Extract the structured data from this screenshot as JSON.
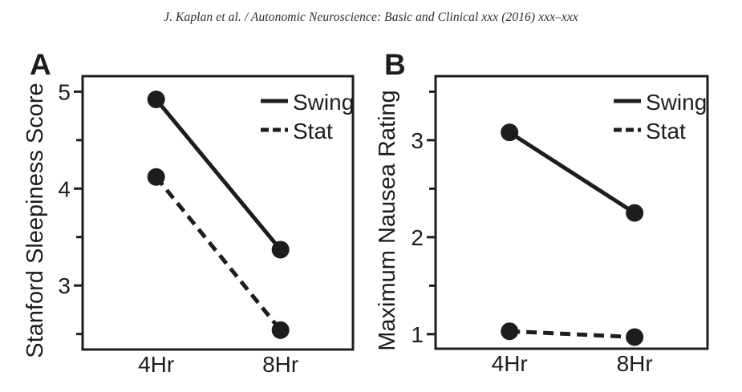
{
  "header": {
    "citation": "J. Kaplan et al. / Autonomic Neuroscience: Basic and Clinical xxx (2016) xxx–xxx"
  },
  "colors": {
    "ink": "#1d1d1b",
    "background": "#ffffff"
  },
  "chart_data": [
    {
      "type": "line",
      "panel_label": "A",
      "title": "",
      "xlabel": "",
      "ylabel": "Stanford Sleepiness Score",
      "categories": [
        "4Hr",
        "8Hr"
      ],
      "series": [
        {
          "name": "Swing",
          "line_style": "solid",
          "marker": "circle",
          "values": [
            4.92,
            3.37
          ]
        },
        {
          "name": "Stat",
          "line_style": "dashed",
          "marker": "circle",
          "values": [
            4.12,
            2.54
          ]
        }
      ],
      "ylim": [
        2.34,
        5.16
      ],
      "yticks_major": [
        5,
        4,
        3
      ],
      "yticks_minor": [
        4.5,
        3.5,
        2.5
      ],
      "grid": false,
      "legend_position": "top-right"
    },
    {
      "type": "line",
      "panel_label": "B",
      "title": "",
      "xlabel": "",
      "ylabel": "Maximum Nausea Rating",
      "categories": [
        "4Hr",
        "8Hr"
      ],
      "series": [
        {
          "name": "Swing",
          "line_style": "solid",
          "marker": "circle",
          "values": [
            3.08,
            2.25
          ]
        },
        {
          "name": "Stat",
          "line_style": "dashed",
          "marker": "circle",
          "values": [
            1.03,
            0.97
          ]
        }
      ],
      "ylim": [
        0.85,
        3.66
      ],
      "yticks_major": [
        3,
        2,
        1
      ],
      "yticks_minor": [
        3.5,
        2.5,
        1.5
      ],
      "grid": false,
      "legend_position": "top-right"
    }
  ]
}
